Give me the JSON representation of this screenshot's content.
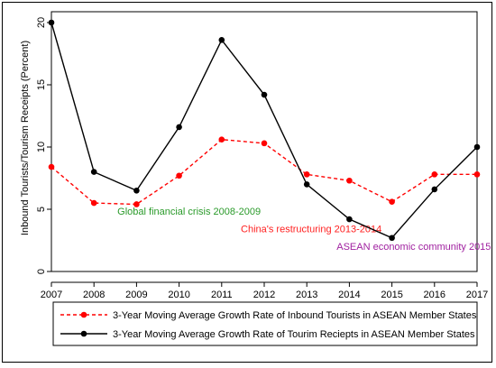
{
  "chart_data": {
    "type": "line",
    "title": "",
    "xlabel": "",
    "ylabel": "Inbound Tourists/Tourism Receipts (Percent)",
    "x": [
      2007,
      2008,
      2009,
      2010,
      2011,
      2012,
      2013,
      2014,
      2015,
      2016,
      2017
    ],
    "xlim": [
      2007,
      2017
    ],
    "ylim": [
      0,
      20
    ],
    "yticks": [
      0,
      5,
      10,
      15,
      20
    ],
    "grid": false,
    "legend_position": "bottom",
    "series": [
      {
        "name": "3-Year Moving Average Growth Rate of Inbound Tourists in ASEAN  Member States",
        "color": "#ff0000",
        "line_style": "dashed",
        "marker": "circle",
        "values": [
          8.4,
          5.5,
          5.4,
          7.7,
          10.6,
          10.3,
          7.8,
          7.3,
          5.6,
          7.8,
          7.8
        ]
      },
      {
        "name": "3-Year Moving Average Growth Rate of Tourim Reciepts in ASEAN Member States",
        "color": "#000000",
        "line_style": "solid",
        "marker": "circle",
        "values": [
          20.0,
          8.0,
          6.5,
          11.6,
          18.6,
          14.2,
          7.0,
          4.2,
          2.7,
          6.6,
          10.0
        ]
      }
    ],
    "annotations": [
      {
        "text": "Global financial crisis 2008-2009",
        "x": 2008.55,
        "y": 4.55,
        "color": "#2a9a2a"
      },
      {
        "text": "China's restructuring 2013-2014",
        "x": 2011.45,
        "y": 3.15,
        "color": "#ff2020"
      },
      {
        "text": "ASEAN economic community 2015",
        "x": 2013.7,
        "y": 1.75,
        "color": "#a020a0"
      }
    ]
  }
}
